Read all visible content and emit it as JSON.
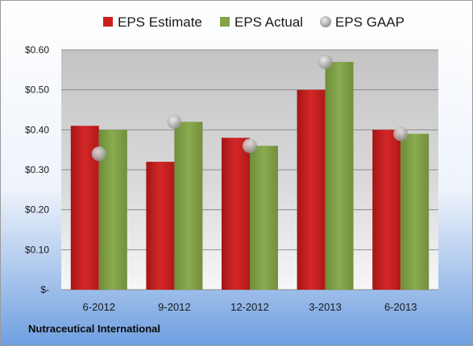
{
  "company": "Nutraceutical International",
  "colors": {
    "estimate": "#cc1f1f",
    "actual": "#82a34a",
    "gaap": "#bfbfbf"
  },
  "chart_data": {
    "type": "bar",
    "categories": [
      "6-2012",
      "9-2012",
      "12-2012",
      "3-2013",
      "6-2013"
    ],
    "series": [
      {
        "name": "EPS Estimate",
        "type": "bar",
        "values": [
          0.41,
          0.32,
          0.38,
          0.5,
          0.4
        ]
      },
      {
        "name": "EPS Actual",
        "type": "bar",
        "values": [
          0.4,
          0.42,
          0.36,
          0.57,
          0.39
        ]
      },
      {
        "name": "EPS GAAP",
        "type": "scatter",
        "values": [
          0.34,
          0.42,
          0.36,
          0.57,
          0.39
        ]
      }
    ],
    "ylim": [
      0,
      0.6
    ],
    "yticks": [
      0,
      0.1,
      0.2,
      0.3,
      0.4,
      0.5,
      0.6
    ],
    "ytick_labels": [
      "$-",
      "$0.10",
      "$0.20",
      "$0.30",
      "$0.40",
      "$0.50",
      "$0.60"
    ],
    "legend_position": "top",
    "grid": true
  }
}
